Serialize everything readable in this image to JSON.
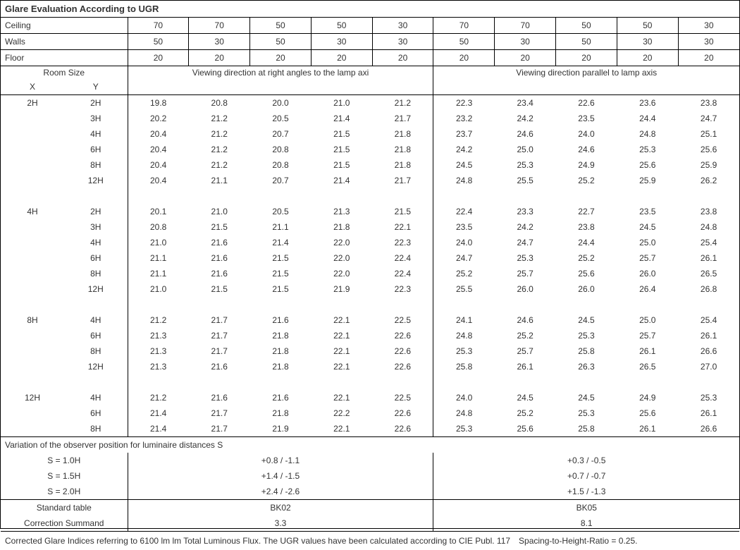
{
  "title": "Glare Evaluation According to UGR",
  "surface_labels": {
    "ceiling": "Ceiling",
    "walls": "Walls",
    "floor": "Floor"
  },
  "ceiling": [
    "70",
    "70",
    "50",
    "50",
    "30",
    "70",
    "70",
    "50",
    "50",
    "30"
  ],
  "walls": [
    "50",
    "30",
    "50",
    "30",
    "30",
    "50",
    "30",
    "50",
    "30",
    "30"
  ],
  "floor": [
    "20",
    "20",
    "20",
    "20",
    "20",
    "20",
    "20",
    "20",
    "20",
    "20"
  ],
  "roomsize_label": "Room Size",
  "x_label": "X",
  "y_label": "Y",
  "left_header": "Viewing direction at right angles to the lamp axi",
  "right_header": "Viewing direction parallel to lamp axis",
  "groups": [
    {
      "x": "2H",
      "rows": [
        {
          "y": "2H",
          "v": [
            "19.8",
            "20.8",
            "20.0",
            "21.0",
            "21.2",
            "22.3",
            "23.4",
            "22.6",
            "23.6",
            "23.8"
          ]
        },
        {
          "y": "3H",
          "v": [
            "20.2",
            "21.2",
            "20.5",
            "21.4",
            "21.7",
            "23.2",
            "24.2",
            "23.5",
            "24.4",
            "24.7"
          ]
        },
        {
          "y": "4H",
          "v": [
            "20.4",
            "21.2",
            "20.7",
            "21.5",
            "21.8",
            "23.7",
            "24.6",
            "24.0",
            "24.8",
            "25.1"
          ]
        },
        {
          "y": "6H",
          "v": [
            "20.4",
            "21.2",
            "20.8",
            "21.5",
            "21.8",
            "24.2",
            "25.0",
            "24.6",
            "25.3",
            "25.6"
          ]
        },
        {
          "y": "8H",
          "v": [
            "20.4",
            "21.2",
            "20.8",
            "21.5",
            "21.8",
            "24.5",
            "25.3",
            "24.9",
            "25.6",
            "25.9"
          ]
        },
        {
          "y": "12H",
          "v": [
            "20.4",
            "21.1",
            "20.7",
            "21.4",
            "21.7",
            "24.8",
            "25.5",
            "25.2",
            "25.9",
            "26.2"
          ]
        }
      ]
    },
    {
      "x": "4H",
      "rows": [
        {
          "y": "2H",
          "v": [
            "20.1",
            "21.0",
            "20.5",
            "21.3",
            "21.5",
            "22.4",
            "23.3",
            "22.7",
            "23.5",
            "23.8"
          ]
        },
        {
          "y": "3H",
          "v": [
            "20.8",
            "21.5",
            "21.1",
            "21.8",
            "22.1",
            "23.5",
            "24.2",
            "23.8",
            "24.5",
            "24.8"
          ]
        },
        {
          "y": "4H",
          "v": [
            "21.0",
            "21.6",
            "21.4",
            "22.0",
            "22.3",
            "24.0",
            "24.7",
            "24.4",
            "25.0",
            "25.4"
          ]
        },
        {
          "y": "6H",
          "v": [
            "21.1",
            "21.6",
            "21.5",
            "22.0",
            "22.4",
            "24.7",
            "25.3",
            "25.2",
            "25.7",
            "26.1"
          ]
        },
        {
          "y": "8H",
          "v": [
            "21.1",
            "21.6",
            "21.5",
            "22.0",
            "22.4",
            "25.2",
            "25.7",
            "25.6",
            "26.0",
            "26.5"
          ]
        },
        {
          "y": "12H",
          "v": [
            "21.0",
            "21.5",
            "21.5",
            "21.9",
            "22.3",
            "25.5",
            "26.0",
            "26.0",
            "26.4",
            "26.8"
          ]
        }
      ]
    },
    {
      "x": "8H",
      "rows": [
        {
          "y": "4H",
          "v": [
            "21.2",
            "21.7",
            "21.6",
            "22.1",
            "22.5",
            "24.1",
            "24.6",
            "24.5",
            "25.0",
            "25.4"
          ]
        },
        {
          "y": "6H",
          "v": [
            "21.3",
            "21.7",
            "21.8",
            "22.1",
            "22.6",
            "24.8",
            "25.2",
            "25.3",
            "25.7",
            "26.1"
          ]
        },
        {
          "y": "8H",
          "v": [
            "21.3",
            "21.7",
            "21.8",
            "22.1",
            "22.6",
            "25.3",
            "25.7",
            "25.8",
            "26.1",
            "26.6"
          ]
        },
        {
          "y": "12H",
          "v": [
            "21.3",
            "21.6",
            "21.8",
            "22.1",
            "22.6",
            "25.8",
            "26.1",
            "26.3",
            "26.5",
            "27.0"
          ]
        }
      ]
    },
    {
      "x": "12H",
      "rows": [
        {
          "y": "4H",
          "v": [
            "21.2",
            "21.6",
            "21.6",
            "22.1",
            "22.5",
            "24.0",
            "24.5",
            "24.5",
            "24.9",
            "25.3"
          ]
        },
        {
          "y": "6H",
          "v": [
            "21.4",
            "21.7",
            "21.8",
            "22.2",
            "22.6",
            "24.8",
            "25.2",
            "25.3",
            "25.6",
            "26.1"
          ]
        },
        {
          "y": "8H",
          "v": [
            "21.4",
            "21.7",
            "21.9",
            "22.1",
            "22.6",
            "25.3",
            "25.6",
            "25.8",
            "26.1",
            "26.6"
          ]
        }
      ]
    }
  ],
  "variation_label": "Variation of the observer position for luminaire distances S",
  "variation_rows": [
    {
      "s": "S = 1.0H",
      "l": "+0.8 / -1.1",
      "r": "+0.3 / -0.5"
    },
    {
      "s": "S = 1.5H",
      "l": "+1.4 / -1.5",
      "r": "+0.7 / -0.7"
    },
    {
      "s": "S = 2.0H",
      "l": "+2.4 / -2.6",
      "r": "+1.5 / -1.3"
    }
  ],
  "std_table_label": "Standard table",
  "corr_label": "Correction Summand",
  "std_left": "BK02",
  "std_right": "BK05",
  "corr_left": "3.3",
  "corr_right": "8.1",
  "footnote": "Corrected Glare Indices referring to 6100 lm lm Total Luminous Flux. The UGR values have been calculated according to CIE Publ. 117 Spacing-to-Height-Ratio = 0.25."
}
